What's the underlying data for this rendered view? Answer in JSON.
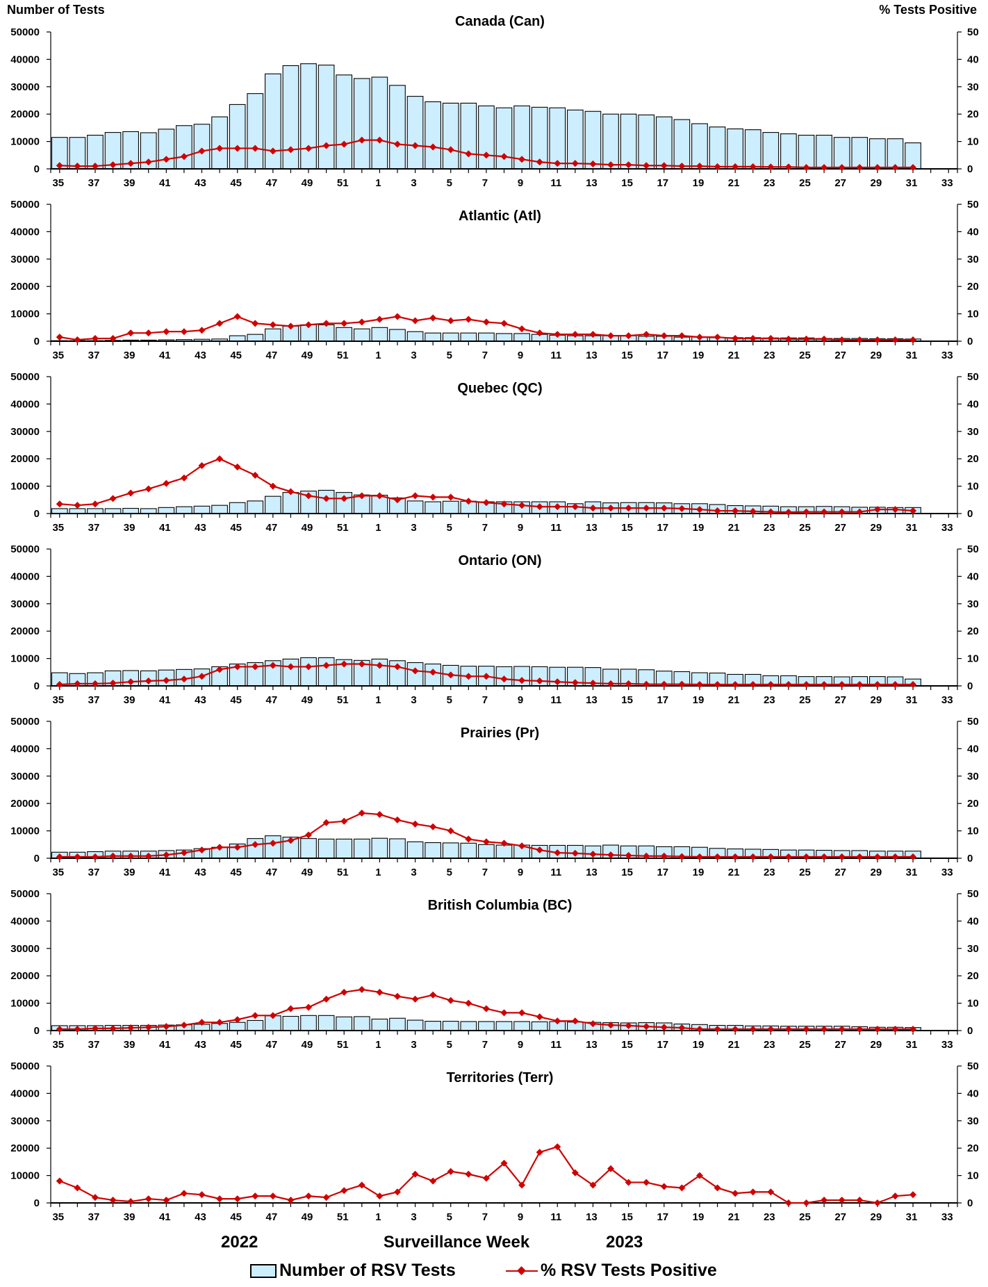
{
  "axes": {
    "left_title": "Number of Tests",
    "right_title": "% Tests Positive",
    "x_title": "Surveillance Week",
    "year_labels": [
      "2022",
      "2023"
    ]
  },
  "legend": {
    "bars_label": "Number of RSV Tests",
    "line_label": "% RSV Tests Positive"
  },
  "colors": {
    "bar_fill": "#CCEEFF",
    "bar_edge": "#000000",
    "line": "#D00000"
  },
  "chart_data": {
    "type": "bar+line",
    "weeks": [
      35,
      36,
      37,
      38,
      39,
      40,
      41,
      42,
      43,
      44,
      45,
      46,
      47,
      48,
      49,
      50,
      51,
      52,
      1,
      2,
      3,
      4,
      5,
      6,
      7,
      8,
      9,
      10,
      11,
      12,
      13,
      14,
      15,
      16,
      17,
      18,
      19,
      20,
      21,
      22,
      23,
      24,
      25,
      26,
      27,
      28,
      29,
      30,
      31,
      32,
      33
    ],
    "x_tick_labels": [
      "35",
      "37",
      "39",
      "41",
      "43",
      "45",
      "47",
      "49",
      "51",
      "1",
      "3",
      "5",
      "7",
      "9",
      "11",
      "13",
      "15",
      "17",
      "19",
      "21",
      "23",
      "25",
      "27",
      "29",
      "31",
      "33"
    ],
    "y_left_ticks": [
      "0",
      "10000",
      "20000",
      "30000",
      "40000",
      "50000"
    ],
    "y_right_ticks": [
      "0",
      "10",
      "20",
      "30",
      "40",
      "50"
    ],
    "ylim_left": [
      0,
      50000
    ],
    "ylim_right": [
      0,
      50
    ],
    "panels": [
      {
        "title": "Canada (Can)",
        "tests": [
          11500,
          11500,
          12300,
          13300,
          13600,
          13200,
          14500,
          15800,
          16300,
          19000,
          23500,
          27500,
          34700,
          37700,
          38400,
          37900,
          34300,
          33000,
          33500,
          30500,
          26500,
          24500,
          24000,
          24000,
          23000,
          22300,
          23000,
          22500,
          22300,
          21500,
          21000,
          20000,
          20000,
          19700,
          19000,
          18000,
          16500,
          15300,
          14600,
          14300,
          13300,
          12800,
          12300,
          12300,
          11500,
          11500,
          11000,
          11000,
          9500
        ],
        "positive_pct": [
          1.2,
          1.0,
          1.0,
          1.5,
          2.0,
          2.5,
          3.5,
          4.5,
          6.5,
          7.5,
          7.5,
          7.5,
          6.5,
          7.0,
          7.5,
          8.5,
          9.0,
          10.5,
          10.5,
          9.0,
          8.5,
          8.0,
          7.0,
          5.5,
          5.0,
          4.5,
          3.5,
          2.5,
          2.0,
          2.0,
          1.8,
          1.5,
          1.5,
          1.2,
          1.2,
          1.0,
          1.0,
          0.8,
          0.8,
          0.8,
          0.7,
          0.7,
          0.5,
          0.5,
          0.5,
          0.5,
          0.5,
          0.5,
          0.5
        ]
      },
      {
        "title": "Atlantic (Atl)",
        "tests": [
          200,
          200,
          200,
          300,
          400,
          400,
          500,
          600,
          700,
          800,
          2000,
          2500,
          4500,
          5500,
          6000,
          6000,
          5000,
          4500,
          5000,
          4300,
          3500,
          3000,
          3000,
          3000,
          3000,
          2800,
          2800,
          2500,
          2200,
          2000,
          2000,
          2000,
          2000,
          1800,
          1800,
          1500,
          1500,
          1300,
          1300,
          1300,
          1200,
          1200,
          1200,
          1000,
          1000,
          1000,
          900,
          900,
          800
        ],
        "positive_pct": [
          1.5,
          0.5,
          1.0,
          1.0,
          3.0,
          3.0,
          3.5,
          3.5,
          4.0,
          6.5,
          9.0,
          6.5,
          6.0,
          5.5,
          6.0,
          6.5,
          6.5,
          7.0,
          8.0,
          9.0,
          7.5,
          8.5,
          7.5,
          8.0,
          7.0,
          6.5,
          4.5,
          3.0,
          2.5,
          2.5,
          2.5,
          2.0,
          2.0,
          2.5,
          2.0,
          2.0,
          1.5,
          1.5,
          1.0,
          1.0,
          1.0,
          0.8,
          0.8,
          0.8,
          0.5,
          0.5,
          0.5,
          0.5,
          0.5
        ]
      },
      {
        "title": "Quebec (QC)",
        "tests": [
          1800,
          1800,
          1800,
          1800,
          1900,
          1800,
          2200,
          2500,
          2700,
          3000,
          4000,
          4600,
          6300,
          7700,
          8200,
          8500,
          7700,
          6800,
          6700,
          5700,
          4600,
          4300,
          4500,
          4500,
          4300,
          4300,
          4300,
          4300,
          4300,
          3600,
          4300,
          3900,
          4000,
          4000,
          3900,
          3600,
          3600,
          3300,
          2900,
          2800,
          2700,
          2500,
          2500,
          2600,
          2500,
          2300,
          2300,
          2200,
          2200
        ],
        "positive_pct": [
          3.5,
          3.0,
          3.5,
          5.5,
          7.5,
          9.0,
          11.0,
          13.0,
          17.5,
          20.0,
          17.0,
          14.0,
          10.0,
          8.0,
          6.5,
          5.5,
          5.5,
          6.5,
          6.5,
          5.0,
          6.5,
          6.0,
          6.0,
          4.5,
          4.0,
          3.5,
          3.0,
          2.5,
          2.5,
          2.5,
          2.0,
          2.0,
          2.0,
          2.0,
          2.0,
          1.8,
          1.5,
          1.0,
          1.0,
          0.8,
          0.6,
          0.5,
          0.6,
          0.6,
          0.6,
          0.6,
          1.5,
          1.5,
          1.0
        ]
      },
      {
        "title": "Ontario (ON)",
        "tests": [
          4800,
          4500,
          4800,
          5500,
          5600,
          5500,
          5800,
          6000,
          6200,
          7000,
          8000,
          8500,
          9200,
          9800,
          10300,
          10300,
          9600,
          9300,
          9800,
          9200,
          8500,
          8000,
          7500,
          7200,
          7200,
          7000,
          7100,
          7000,
          6800,
          6800,
          6700,
          6100,
          6100,
          5900,
          5400,
          5200,
          4800,
          4700,
          4200,
          4200,
          3700,
          3700,
          3400,
          3400,
          3300,
          3400,
          3400,
          3300,
          2500
        ],
        "positive_pct": [
          0.5,
          0.8,
          0.8,
          1.0,
          1.5,
          1.8,
          2.0,
          2.5,
          3.5,
          6.0,
          7.0,
          7.0,
          7.5,
          7.0,
          7.0,
          7.5,
          8.0,
          8.0,
          7.5,
          7.0,
          5.5,
          5.0,
          4.0,
          3.5,
          3.5,
          2.5,
          2.0,
          1.8,
          1.5,
          1.2,
          1.0,
          0.8,
          0.8,
          0.6,
          0.6,
          0.6,
          0.5,
          0.5,
          0.5,
          0.5,
          0.5,
          0.5,
          0.5,
          0.5,
          0.5,
          0.5,
          0.5,
          0.5,
          0.5
        ]
      },
      {
        "title": "Prairies (Pr)",
        "tests": [
          2200,
          2200,
          2400,
          2600,
          2600,
          2600,
          2800,
          3000,
          3500,
          4000,
          5200,
          7200,
          8200,
          7700,
          7200,
          7000,
          7000,
          7000,
          7300,
          7100,
          6000,
          5700,
          5600,
          5500,
          5000,
          4800,
          4800,
          4700,
          4700,
          4700,
          4500,
          4800,
          4500,
          4500,
          4200,
          4200,
          4000,
          3600,
          3400,
          3300,
          3200,
          3000,
          3000,
          2900,
          2800,
          2800,
          2600,
          2600,
          2600
        ],
        "positive_pct": [
          0.5,
          0.5,
          0.5,
          0.8,
          0.8,
          0.8,
          1.2,
          2.0,
          3.0,
          4.0,
          4.0,
          5.0,
          5.5,
          6.5,
          8.5,
          13.0,
          13.5,
          16.5,
          16.0,
          14.0,
          12.5,
          11.5,
          10.0,
          7.0,
          6.0,
          5.5,
          4.5,
          3.0,
          2.0,
          1.8,
          1.5,
          1.2,
          1.0,
          0.8,
          0.8,
          0.6,
          0.5,
          0.5,
          0.5,
          0.5,
          0.5,
          0.5,
          0.5,
          0.5,
          0.5,
          0.5,
          0.5,
          0.5,
          0.5
        ]
      },
      {
        "title": "British Columbia (BC)",
        "tests": [
          1800,
          1800,
          1800,
          1900,
          1900,
          1900,
          2000,
          2100,
          2300,
          2600,
          3000,
          3700,
          5400,
          5200,
          5500,
          5500,
          5000,
          5100,
          4200,
          4500,
          3800,
          3400,
          3400,
          3300,
          3300,
          3300,
          3300,
          3200,
          3300,
          3100,
          3000,
          2900,
          2800,
          2900,
          2800,
          2400,
          2200,
          1900,
          1900,
          1700,
          1700,
          1600,
          1600,
          1600,
          1600,
          1400,
          1200,
          1200,
          1100
        ],
        "positive_pct": [
          0.5,
          0.5,
          0.8,
          0.8,
          1.0,
          1.2,
          1.5,
          2.0,
          3.0,
          3.0,
          4.0,
          5.5,
          5.5,
          8.0,
          8.5,
          11.5,
          14.0,
          15.0,
          14.0,
          12.5,
          11.5,
          13.0,
          11.0,
          10.0,
          8.0,
          6.5,
          6.5,
          5.0,
          3.5,
          3.5,
          2.5,
          2.0,
          1.8,
          1.5,
          1.2,
          1.0,
          0.5,
          0.5,
          0.5,
          0.5,
          0.5,
          0.5,
          0.5,
          0.5,
          0.5,
          0.5,
          0.5,
          0.5,
          0.5
        ]
      },
      {
        "title": "Territories (Terr)",
        "tests": [
          50,
          50,
          50,
          50,
          50,
          50,
          50,
          50,
          50,
          50,
          50,
          50,
          50,
          50,
          50,
          50,
          50,
          50,
          50,
          50,
          50,
          50,
          50,
          50,
          50,
          50,
          50,
          50,
          50,
          50,
          50,
          50,
          50,
          50,
          50,
          50,
          50,
          50,
          50,
          50,
          50,
          50,
          50,
          50,
          50,
          50,
          50,
          50,
          50
        ],
        "positive_pct": [
          8.0,
          5.5,
          2.0,
          1.0,
          0.5,
          1.5,
          1.0,
          3.5,
          3.0,
          1.5,
          1.5,
          2.5,
          2.5,
          1.0,
          2.5,
          2.0,
          4.5,
          6.5,
          2.5,
          4.0,
          10.5,
          8.0,
          11.5,
          10.5,
          9.0,
          14.5,
          6.5,
          18.5,
          20.5,
          11.0,
          6.5,
          12.5,
          7.5,
          7.5,
          6.0,
          5.5,
          10.0,
          5.5,
          3.5,
          4.0,
          4.0,
          0.0,
          0.0,
          1.0,
          1.0,
          1.0,
          0.0,
          2.5,
          3.0
        ]
      }
    ]
  }
}
